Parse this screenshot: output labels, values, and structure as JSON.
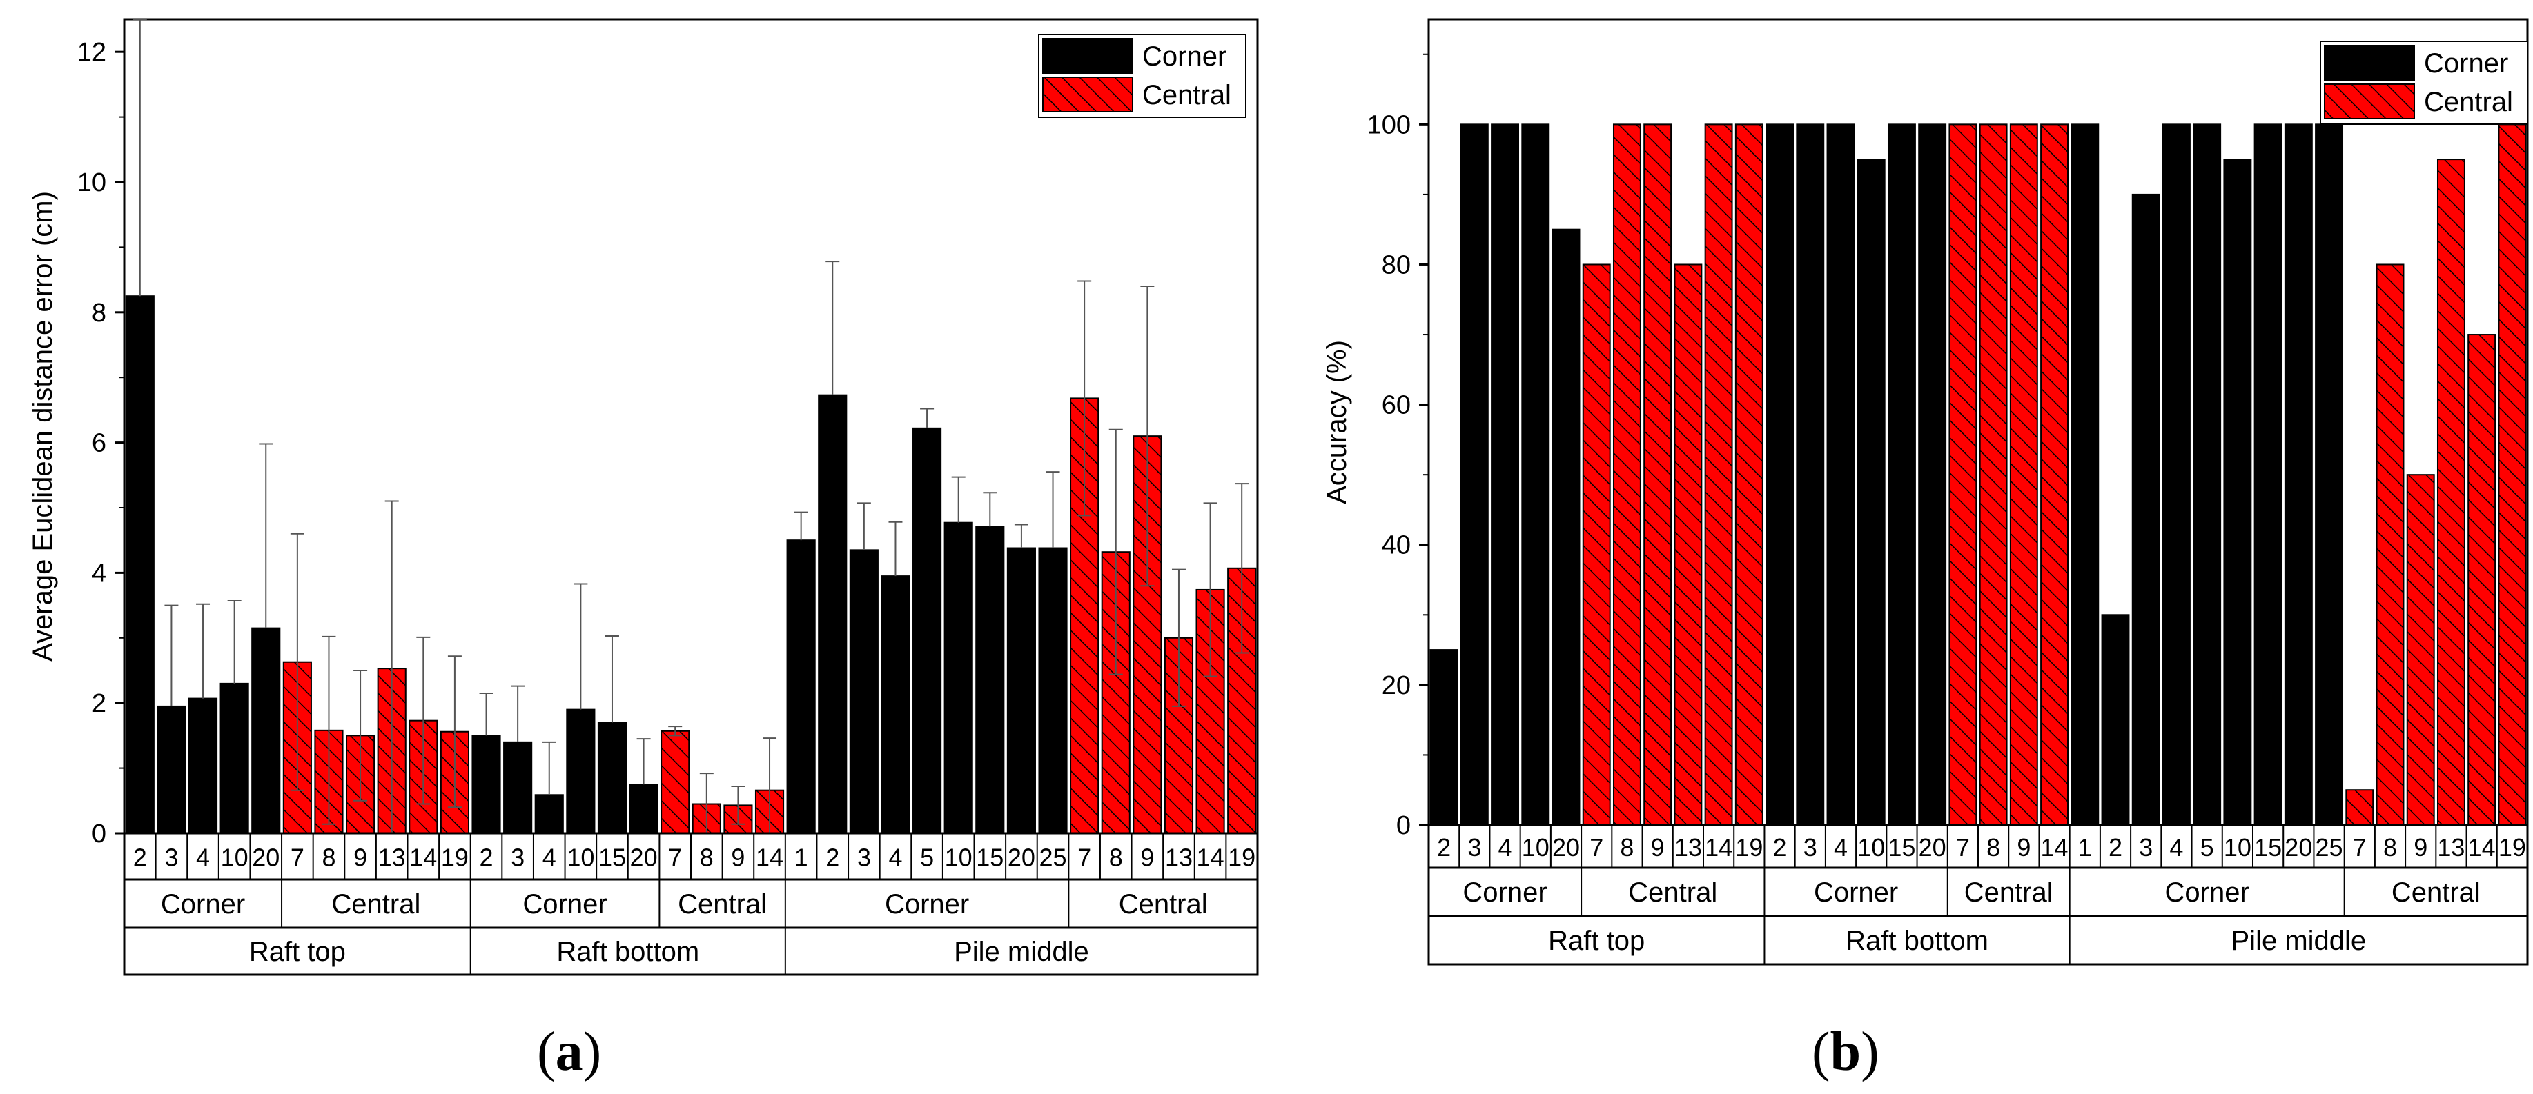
{
  "colors": {
    "corner_fill": "#000000",
    "central_fill": "#ff0000",
    "hatch": "#000000",
    "axis": "#000000",
    "error_bar": "#555555"
  },
  "chart_data": [
    {
      "type": "bar",
      "panel_label": "a",
      "title": "",
      "xlabel": "",
      "ylabel": "Average Euclidean distance error (cm)",
      "ylim": [
        0,
        12.5
      ],
      "yticks": [
        0,
        2,
        4,
        6,
        8,
        10,
        12
      ],
      "ytick_labels": [
        "0",
        "2",
        "4",
        "6",
        "8",
        "10",
        "12"
      ],
      "grid": false,
      "legend": {
        "position": "top-right",
        "entries": [
          "Corner",
          "Central"
        ]
      },
      "groups": [
        {
          "location": "Raft top",
          "bars": [
            {
              "type": "Corner",
              "ids": [
                "2",
                "3",
                "4",
                "10",
                "20"
              ],
              "values": [
                8.25,
                1.95,
                2.07,
                2.3,
                3.15
              ],
              "errors": [
                4.25,
                1.55,
                1.45,
                1.27,
                2.83
              ]
            },
            {
              "type": "Central",
              "ids": [
                "7",
                "8",
                "9",
                "13",
                "14",
                "19"
              ],
              "values": [
                2.63,
                1.58,
                1.5,
                2.53,
                1.73,
                1.56
              ],
              "errors": [
                1.97,
                1.44,
                1.0,
                2.57,
                1.28,
                1.16
              ]
            }
          ]
        },
        {
          "location": "Raft bottom",
          "bars": [
            {
              "type": "Corner",
              "ids": [
                "2",
                "3",
                "4",
                "10",
                "15",
                "20"
              ],
              "values": [
                1.5,
                1.4,
                0.59,
                1.9,
                1.7,
                0.75
              ],
              "errors": [
                0.65,
                0.86,
                0.81,
                1.93,
                1.33,
                0.7
              ]
            },
            {
              "type": "Central",
              "ids": [
                "7",
                "8",
                "9",
                "14"
              ],
              "values": [
                1.57,
                0.45,
                0.43,
                0.66
              ],
              "errors": [
                0.07,
                0.47,
                0.29,
                0.8
              ]
            }
          ]
        },
        {
          "location": "Pile middle",
          "bars": [
            {
              "type": "Corner",
              "ids": [
                "1",
                "2",
                "3",
                "4",
                "5",
                "10",
                "15",
                "20",
                "25"
              ],
              "values": [
                4.5,
                6.73,
                4.35,
                3.95,
                6.22,
                4.77,
                4.71,
                4.38,
                4.38
              ],
              "errors": [
                0.43,
                2.05,
                0.72,
                0.83,
                0.3,
                0.7,
                0.52,
                0.36,
                1.17
              ]
            },
            {
              "type": "Central",
              "ids": [
                "7",
                "8",
                "9",
                "13",
                "14",
                "19"
              ],
              "values": [
                6.68,
                4.32,
                6.1,
                3.0,
                3.74,
                4.07
              ],
              "errors": [
                1.8,
                1.88,
                2.3,
                1.05,
                1.33,
                1.3
              ]
            }
          ]
        }
      ]
    },
    {
      "type": "bar",
      "panel_label": "b",
      "title": "",
      "xlabel": "",
      "ylabel": "Accuracy (%)",
      "ylim": [
        0,
        115
      ],
      "yticks": [
        0,
        20,
        40,
        60,
        80,
        100
      ],
      "ytick_labels": [
        "0",
        "20",
        "40",
        "60",
        "80",
        "100"
      ],
      "grid": false,
      "legend": {
        "position": "top-right",
        "entries": [
          "Corner",
          "Central"
        ]
      },
      "groups": [
        {
          "location": "Raft top",
          "bars": [
            {
              "type": "Corner",
              "ids": [
                "2",
                "3",
                "4",
                "10",
                "20"
              ],
              "values": [
                25,
                100,
                100,
                100,
                85
              ]
            },
            {
              "type": "Central",
              "ids": [
                "7",
                "8",
                "9",
                "13",
                "14",
                "19"
              ],
              "values": [
                80,
                100,
                100,
                80,
                100,
                100
              ]
            }
          ]
        },
        {
          "location": "Raft bottom",
          "bars": [
            {
              "type": "Corner",
              "ids": [
                "2",
                "3",
                "4",
                "10",
                "15",
                "20"
              ],
              "values": [
                100,
                100,
                100,
                95,
                100,
                100
              ]
            },
            {
              "type": "Central",
              "ids": [
                "7",
                "8",
                "9",
                "14"
              ],
              "values": [
                100,
                100,
                100,
                100
              ]
            }
          ]
        },
        {
          "location": "Pile middle",
          "bars": [
            {
              "type": "Corner",
              "ids": [
                "1",
                "2",
                "3",
                "4",
                "5",
                "10",
                "15",
                "20",
                "25"
              ],
              "values": [
                100,
                30,
                90,
                100,
                100,
                95,
                100,
                100,
                100
              ]
            },
            {
              "type": "Central",
              "ids": [
                "7",
                "8",
                "9",
                "13",
                "14",
                "19"
              ],
              "values": [
                5,
                80,
                50,
                95,
                70,
                100
              ]
            }
          ]
        }
      ]
    }
  ]
}
